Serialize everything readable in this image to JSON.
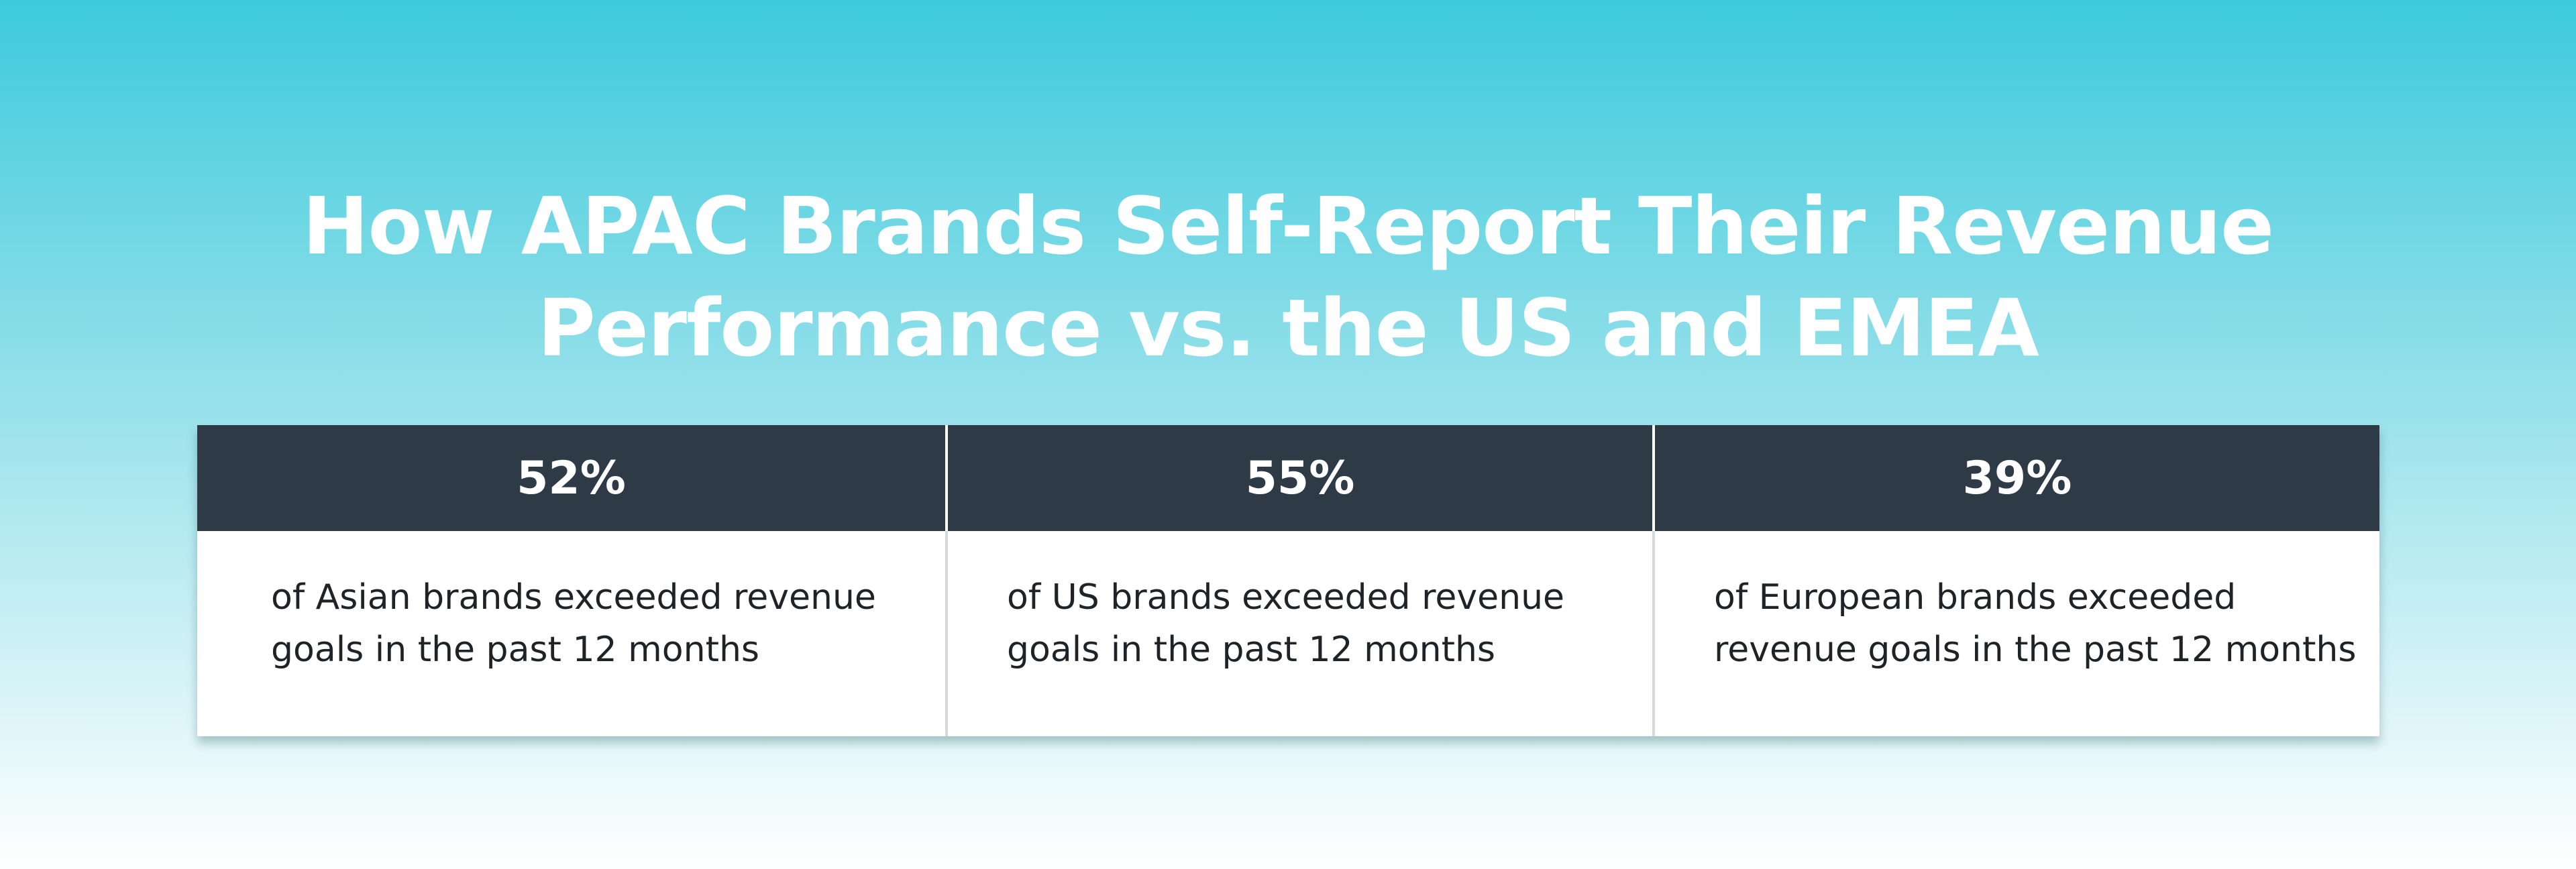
{
  "title": {
    "line1": "How APAC Brands Self-Report Their Revenue",
    "line2": "Performance vs. the US and EMEA"
  },
  "chart_data": {
    "type": "table",
    "title": "How APAC Brands Self-Report Their Revenue Performance vs. the US and EMEA",
    "columns": [
      {
        "value": "52%",
        "value_number": 52,
        "description_line1": "of Asian brands exceeded revenue",
        "description_line2": "goals in the past 12 months"
      },
      {
        "value": "55%",
        "value_number": 55,
        "description_line1": "of US brands exceeded revenue",
        "description_line2": "goals in the past 12 months"
      },
      {
        "value": "39%",
        "value_number": 39,
        "description_line1": "of European brands exceeded",
        "description_line2": "revenue goals in the past 12 months"
      }
    ]
  },
  "colors": {
    "background_top": "#3ccadc",
    "background_bottom": "#ffffff",
    "header_fill": "#2e3a46",
    "title_text": "#ffffff",
    "body_text": "#1e2328"
  }
}
